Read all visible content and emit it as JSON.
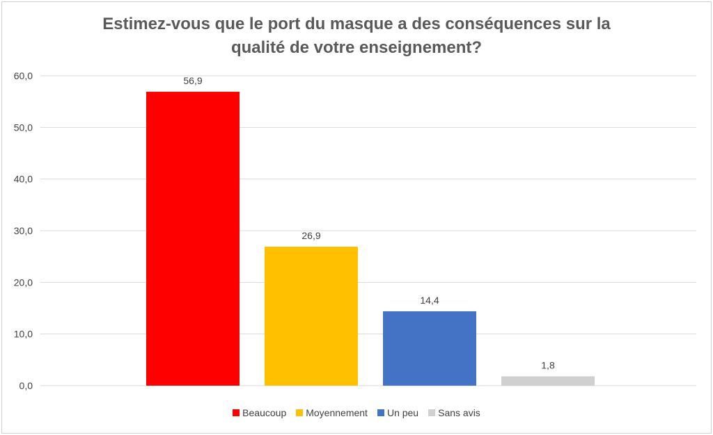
{
  "chart_data": {
    "type": "bar",
    "title_lines": [
      "Estimez-vous que le port du masque a des conséquences sur la",
      "qualité de votre enseignement?"
    ],
    "categories": [
      "Beaucoup",
      "Moyennement",
      "Un peu",
      "Sans avis"
    ],
    "values": [
      56.9,
      26.9,
      14.4,
      1.8
    ],
    "value_labels": [
      "56,9",
      "26,9",
      "14,4",
      "1,8"
    ],
    "colors": [
      "#ff0000",
      "#ffc000",
      "#4472c4",
      "#d0d0d0"
    ],
    "ylim": [
      0,
      60
    ],
    "yticks": [
      0,
      10,
      20,
      30,
      40,
      50,
      60
    ],
    "ytick_labels": [
      "0,0",
      "10,0",
      "20,0",
      "30,0",
      "40,0",
      "50,0",
      "60,0"
    ],
    "grid": true,
    "legend_position": "bottom",
    "xlabel": "",
    "ylabel": ""
  }
}
